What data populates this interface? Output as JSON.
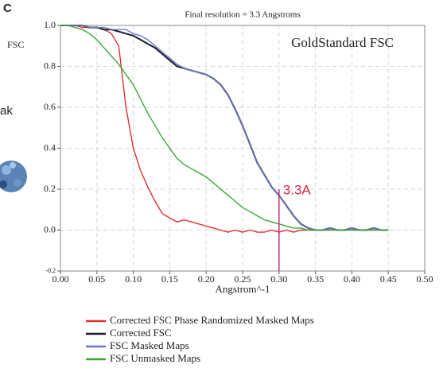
{
  "panel_label": "C",
  "side_texts": [
    "FSC",
    "ak"
  ],
  "chart_data": {
    "type": "line",
    "title": "Final resolution =  3.3 Angstroms",
    "inset_title": "GoldStandard FSC",
    "x_label": "Angstrom^-1",
    "annotation": {
      "text": "3.3A",
      "x": 0.3,
      "y": 0.2,
      "color": "#d8264a"
    },
    "resolution_line": {
      "x": 0.3,
      "color": "#c0307a"
    },
    "xlim": [
      0,
      0.5
    ],
    "ylim": [
      -0.2,
      1.0
    ],
    "grid": true,
    "xticks": [
      {
        "value": 0,
        "label": "0.00"
      },
      {
        "value": 0.05,
        "label": "0.05"
      },
      {
        "value": 0.1,
        "label": "0.10"
      },
      {
        "value": 0.15,
        "label": "0.15"
      },
      {
        "value": 0.2,
        "label": "0.20"
      },
      {
        "value": 0.25,
        "label": "0.25"
      },
      {
        "value": 0.3,
        "label": "0.30"
      },
      {
        "value": 0.35,
        "label": "0.35"
      },
      {
        "value": 0.4,
        "label": "0.40"
      },
      {
        "value": 0.45,
        "label": "0.45"
      },
      {
        "value": 0.5,
        "label": "0.50"
      }
    ],
    "yticks": [
      -0.2,
      {
        "value": 0,
        "label": "0.0"
      },
      0.2,
      0.4,
      0.6,
      0.8,
      {
        "value": 1,
        "label": "1.0"
      }
    ],
    "x": [
      0,
      0.01,
      0.02,
      0.03,
      0.04,
      0.05,
      0.06,
      0.07,
      0.08,
      0.09,
      0.1,
      0.11,
      0.12,
      0.13,
      0.14,
      0.15,
      0.16,
      0.17,
      0.18,
      0.19,
      0.2,
      0.21,
      0.22,
      0.23,
      0.24,
      0.25,
      0.26,
      0.27,
      0.28,
      0.29,
      0.3,
      0.31,
      0.32,
      0.33,
      0.34,
      0.35,
      0.36,
      0.37,
      0.38,
      0.39,
      0.4,
      0.41,
      0.42,
      0.43,
      0.44,
      0.45
    ],
    "series": [
      {
        "name": "Corrected FSC Phase Randomized Masked Maps",
        "color": "#e03030",
        "values": [
          1.0,
          1.0,
          1.0,
          0.99,
          0.99,
          0.99,
          0.98,
          0.96,
          0.9,
          0.6,
          0.4,
          0.29,
          0.21,
          0.14,
          0.08,
          0.06,
          0.04,
          0.05,
          0.04,
          0.03,
          0.02,
          0.01,
          0.0,
          -0.01,
          0.0,
          -0.01,
          0.0,
          -0.01,
          -0.01,
          0.0,
          -0.01,
          0.0,
          -0.01,
          0.0,
          0.0,
          0.0,
          0.0,
          0.0,
          0.0,
          0.0,
          0.0,
          0.0,
          0.0,
          0.0,
          0.0,
          0.0
        ]
      },
      {
        "name": "Corrected FSC",
        "color": "#1a1a2a",
        "values": [
          1.0,
          1.0,
          1.0,
          1.0,
          0.99,
          0.99,
          0.98,
          0.98,
          0.97,
          0.96,
          0.95,
          0.93,
          0.91,
          0.89,
          0.86,
          0.83,
          0.8,
          0.79,
          0.78,
          0.77,
          0.76,
          0.74,
          0.71,
          0.66,
          0.59,
          0.51,
          0.42,
          0.33,
          0.27,
          0.21,
          0.17,
          0.12,
          0.07,
          0.03,
          0.01,
          0.0,
          0.0,
          0.01,
          0.0,
          0.0,
          0.01,
          0.0,
          0.0,
          0.01,
          0.0,
          0.0
        ]
      },
      {
        "name": "FSC Masked Maps",
        "color": "#6a78c8",
        "values": [
          1.0,
          1.0,
          1.0,
          1.0,
          0.99,
          0.99,
          0.99,
          0.98,
          0.98,
          0.98,
          0.96,
          0.95,
          0.93,
          0.9,
          0.87,
          0.84,
          0.81,
          0.79,
          0.78,
          0.77,
          0.76,
          0.74,
          0.71,
          0.66,
          0.59,
          0.51,
          0.42,
          0.33,
          0.27,
          0.21,
          0.17,
          0.12,
          0.07,
          0.03,
          0.01,
          0.0,
          0.0,
          0.01,
          0.0,
          0.0,
          0.01,
          0.0,
          0.0,
          0.01,
          0.0,
          0.0
        ]
      },
      {
        "name": "FSC Unmasked Maps",
        "color": "#3aa838",
        "values": [
          1.0,
          1.0,
          0.99,
          0.98,
          0.96,
          0.93,
          0.89,
          0.85,
          0.81,
          0.76,
          0.71,
          0.64,
          0.57,
          0.51,
          0.45,
          0.4,
          0.35,
          0.32,
          0.3,
          0.28,
          0.26,
          0.23,
          0.2,
          0.17,
          0.14,
          0.11,
          0.09,
          0.07,
          0.05,
          0.04,
          0.03,
          0.02,
          0.01,
          0.01,
          0.0,
          0.0,
          0.0,
          0.0,
          0.0,
          0.0,
          0.0,
          0.0,
          0.0,
          0.0,
          0.0,
          0.0
        ]
      }
    ]
  }
}
